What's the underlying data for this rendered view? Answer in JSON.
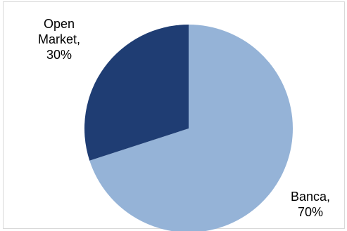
{
  "chart_data": {
    "type": "pie",
    "title": "",
    "slices": [
      {
        "label": "Banca",
        "label_lines": [
          "Banca,",
          "70%"
        ],
        "value": 70,
        "color": "#95B3D7"
      },
      {
        "label": "Open Market",
        "label_lines": [
          "Open",
          "Market,",
          "30%"
        ],
        "value": 30,
        "color": "#1F3D73"
      }
    ],
    "legend": "none",
    "start": "12 o'clock",
    "direction": "clockwise"
  }
}
